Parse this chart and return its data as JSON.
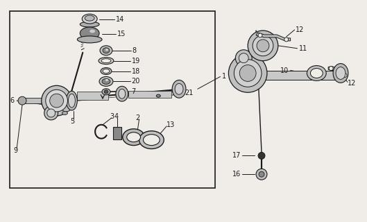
{
  "bg": "#f0ede8",
  "lc": "#1a1a1a",
  "figure_width": 5.29,
  "figure_height": 3.2,
  "dpi": 100
}
